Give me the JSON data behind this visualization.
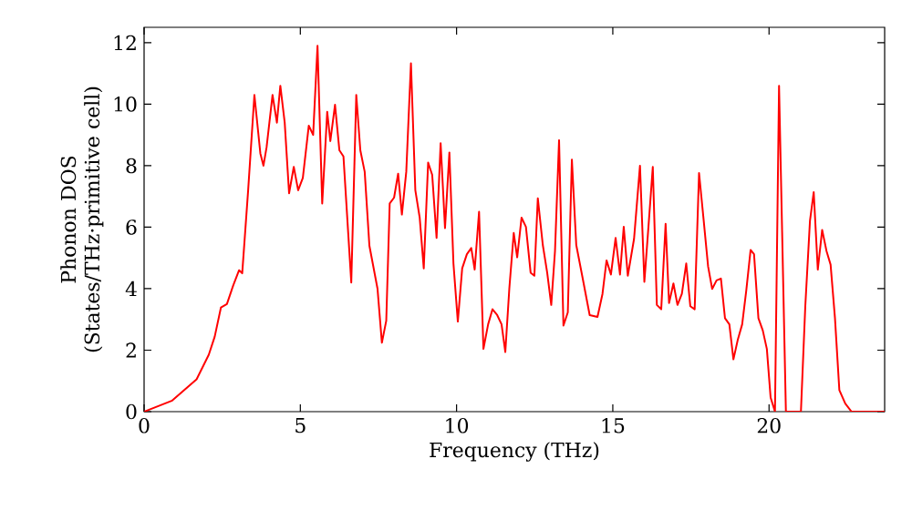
{
  "chart_data": {
    "type": "line",
    "xlabel": "Frequency (THz)",
    "ylabel": "Phonon DOS (States/THz·primitive cell)",
    "xlim": [
      0,
      23.7
    ],
    "ylim": [
      0,
      12.5
    ],
    "xticks": [
      0,
      5,
      10,
      15,
      20
    ],
    "yticks": [
      0,
      2,
      4,
      6,
      8,
      10,
      12
    ],
    "marker": "none",
    "line_style": "solid",
    "series": [
      {
        "color": "#ff0000",
        "x": [
          0,
          0.9,
          1.68,
          2.07,
          2.26,
          2.46,
          2.65,
          2.85,
          3.04,
          3.14,
          3.33,
          3.53,
          3.72,
          3.82,
          3.92,
          4.11,
          4.25,
          4.36,
          4.5,
          4.64,
          4.79,
          4.93,
          5.08,
          5.27,
          5.41,
          5.55,
          5.7,
          5.86,
          5.96,
          6.11,
          6.25,
          6.38,
          6.63,
          6.79,
          6.92,
          7.06,
          7.21,
          7.47,
          7.61,
          7.75,
          7.86,
          8.0,
          8.13,
          8.25,
          8.39,
          8.54,
          8.68,
          8.82,
          8.95,
          9.09,
          9.22,
          9.36,
          9.49,
          9.63,
          9.77,
          9.9,
          10.04,
          10.18,
          10.33,
          10.47,
          10.58,
          10.72,
          10.86,
          11.01,
          11.15,
          11.3,
          11.44,
          11.56,
          11.69,
          11.83,
          11.94,
          12.08,
          12.22,
          12.37,
          12.49,
          12.6,
          12.76,
          12.9,
          13.03,
          13.15,
          13.28,
          13.42,
          13.56,
          13.69,
          13.83,
          14.02,
          14.26,
          14.51,
          14.67,
          14.8,
          14.94,
          15.09,
          15.23,
          15.35,
          15.48,
          15.68,
          15.87,
          16.01,
          16.14,
          16.28,
          16.41,
          16.55,
          16.69,
          16.8,
          16.94,
          17.07,
          17.21,
          17.35,
          17.48,
          17.62,
          17.76,
          17.91,
          18.05,
          18.18,
          18.32,
          18.46,
          18.59,
          18.73,
          18.86,
          19.0,
          19.14,
          19.27,
          19.41,
          19.52,
          19.66,
          19.8,
          19.93,
          20.05,
          20.19,
          20.32,
          20.54,
          21.02,
          21.16,
          21.31,
          21.43,
          21.56,
          21.7,
          21.84,
          21.97,
          22.11,
          22.25,
          22.44,
          22.64,
          23.7
        ],
        "values": [
          0,
          0.36,
          1.05,
          1.85,
          2.44,
          3.39,
          3.5,
          4.1,
          4.6,
          4.5,
          7.2,
          10.3,
          8.4,
          8.0,
          8.6,
          10.3,
          9.4,
          10.6,
          9.4,
          7.1,
          7.96,
          7.2,
          7.6,
          9.3,
          9.0,
          11.9,
          6.77,
          9.75,
          8.8,
          9.98,
          8.5,
          8.3,
          4.2,
          10.3,
          8.5,
          7.8,
          5.4,
          4.0,
          2.24,
          2.96,
          6.77,
          6.96,
          7.74,
          6.41,
          7.8,
          11.33,
          7.2,
          6.31,
          4.66,
          8.1,
          7.7,
          5.65,
          8.73,
          5.97,
          8.43,
          4.82,
          2.93,
          4.66,
          5.12,
          5.32,
          4.62,
          6.5,
          2.04,
          2.84,
          3.33,
          3.14,
          2.84,
          1.94,
          4.03,
          5.81,
          5.02,
          6.31,
          6.01,
          4.52,
          4.42,
          6.94,
          5.42,
          4.52,
          3.47,
          5.22,
          8.83,
          2.8,
          3.23,
          8.2,
          5.42,
          4.42,
          3.14,
          3.08,
          3.83,
          4.92,
          4.46,
          5.65,
          4.46,
          6.01,
          4.42,
          5.62,
          8.0,
          4.22,
          6.0,
          7.96,
          3.47,
          3.33,
          6.11,
          3.53,
          4.17,
          3.47,
          3.83,
          4.82,
          3.43,
          3.33,
          7.76,
          6.2,
          4.72,
          3.99,
          4.27,
          4.33,
          3.04,
          2.84,
          1.7,
          2.34,
          2.84,
          3.93,
          5.26,
          5.12,
          3.04,
          2.64,
          2.04,
          0.46,
          0,
          10.6,
          0,
          0,
          3.43,
          6.21,
          7.14,
          4.62,
          5.91,
          5.22,
          4.78,
          3.04,
          0.7,
          0.26,
          0,
          0
        ]
      }
    ]
  }
}
